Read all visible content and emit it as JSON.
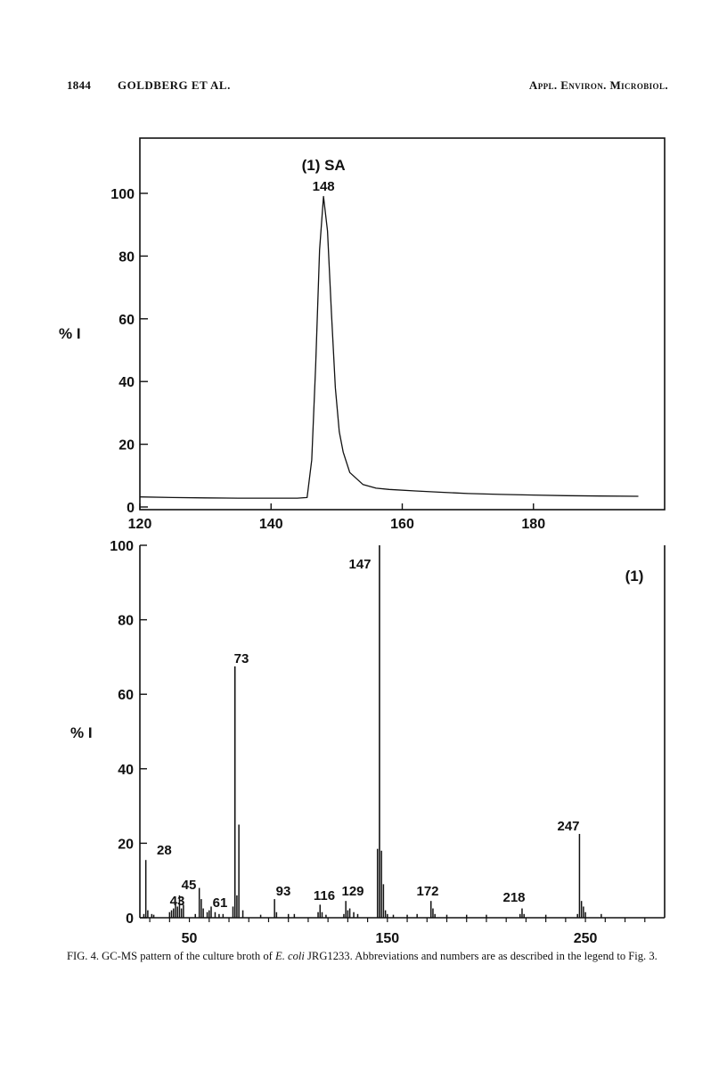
{
  "header": {
    "page_number": "1844",
    "running_head": "GOLDBERG ET AL.",
    "journal": "Appl. Environ. Microbiol."
  },
  "caption": {
    "lead": "FIG. 4. GC-MS pattern of the culture broth of ",
    "organism": "E. coli",
    "rest": " JRG1233. Abbreviations and numbers are as described in the legend to Fig. 3."
  },
  "colors": {
    "ink": "#111111",
    "background": "#ffffff"
  },
  "chart_data": [
    {
      "type": "line",
      "title": "(1) SA",
      "ylabel": "% I",
      "xlabel": "",
      "xlim": [
        120,
        200
      ],
      "ylim": [
        0,
        115
      ],
      "xticks": [
        120,
        140,
        160,
        180
      ],
      "yticks": [
        0,
        20,
        40,
        60,
        80,
        100
      ],
      "grid": false,
      "peak_label": {
        "x": 148,
        "text": "148"
      },
      "series": [
        {
          "x": [
            120,
            125,
            130,
            135,
            140,
            144,
            145.5,
            146.2,
            146.8,
            147.4,
            148,
            148.6,
            149.2,
            149.8,
            150.4,
            151,
            152,
            154,
            156,
            158,
            162,
            166,
            170,
            175,
            180,
            185,
            190,
            196
          ],
          "values": [
            3.2,
            3.0,
            2.9,
            2.8,
            2.8,
            2.8,
            3.0,
            15,
            45,
            82,
            99,
            88,
            62,
            38,
            24,
            17.5,
            11,
            7.2,
            6.0,
            5.6,
            5.1,
            4.7,
            4.3,
            4.0,
            3.8,
            3.6,
            3.5,
            3.4
          ]
        }
      ]
    },
    {
      "type": "bar",
      "title": "(1)",
      "ylabel": "% I",
      "xlabel": "",
      "xlim": [
        25,
        290
      ],
      "ylim": [
        0,
        100
      ],
      "xticks": [
        50,
        150,
        250
      ],
      "yticks": [
        0,
        20,
        40,
        60,
        80,
        100
      ],
      "grid": false,
      "labeled_peaks": [
        "28",
        "43",
        "45",
        "61",
        "73",
        "93",
        "116",
        "129",
        "147",
        "172",
        "218",
        "247"
      ],
      "x": [
        27,
        28,
        29,
        31,
        32,
        40,
        41,
        42,
        43,
        44,
        45,
        46,
        47,
        53,
        55,
        56,
        57,
        59,
        60,
        61,
        63,
        65,
        67,
        72,
        73,
        74,
        75,
        77,
        86,
        93,
        94,
        100,
        103,
        115,
        116,
        117,
        119,
        128,
        129,
        130,
        131,
        133,
        135,
        145,
        146,
        147,
        148,
        149,
        150,
        153,
        160,
        165,
        172,
        173,
        174,
        180,
        190,
        200,
        217,
        218,
        219,
        230,
        246,
        247,
        248,
        249,
        250,
        258
      ],
      "values": [
        1.0,
        15.5,
        2.0,
        1.0,
        0.8,
        1.5,
        2.0,
        2.5,
        4.0,
        3.0,
        6.0,
        2.5,
        3.5,
        1.0,
        8.0,
        5.0,
        2.5,
        1.5,
        2.0,
        3.0,
        1.5,
        1.0,
        1.0,
        3.0,
        67.5,
        6.0,
        25.0,
        2.0,
        0.8,
        5.0,
        1.5,
        1.0,
        1.0,
        1.5,
        3.5,
        1.5,
        0.8,
        1.0,
        4.5,
        2.0,
        2.5,
        1.5,
        1.0,
        18.5,
        100,
        18.0,
        9.0,
        2.0,
        1.0,
        0.8,
        0.8,
        1.0,
        4.5,
        2.5,
        1.0,
        0.8,
        0.8,
        0.8,
        1.0,
        2.5,
        1.0,
        0.8,
        1.0,
        22.5,
        4.5,
        3.0,
        1.5,
        1.0
      ]
    }
  ]
}
